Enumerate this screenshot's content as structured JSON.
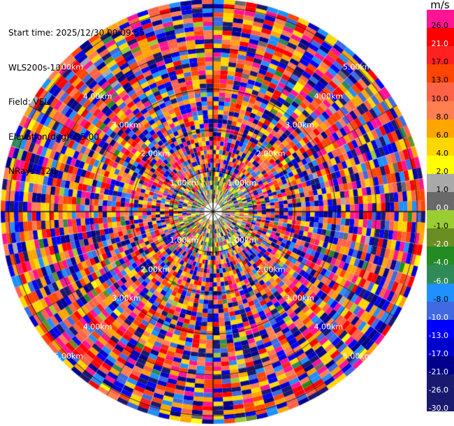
{
  "header": {
    "start_time": "Start time: 2025/12/30 00:09:55",
    "instrument": "WLS200s-181",
    "field": "Field: VEL",
    "elevation": "Elevation(deg): 35.00",
    "nrays": "NRays: 120"
  },
  "colorbar": {
    "unit": "m/s",
    "levels": [
      {
        "label": "26.0",
        "color": "#ff1493"
      },
      {
        "label": "21.0",
        "color": "#ff0000"
      },
      {
        "label": "17.0",
        "color": "#ff2020"
      },
      {
        "label": "13.0",
        "color": "#ff4500"
      },
      {
        "label": "10.0",
        "color": "#ff6347"
      },
      {
        "label": "8.0",
        "color": "#ff7f50"
      },
      {
        "label": "6.0",
        "color": "#ffa500"
      },
      {
        "label": "4.0",
        "color": "#ffd700"
      },
      {
        "label": "2.0",
        "color": "#ffff00"
      },
      {
        "label": "1.0",
        "color": "#a9a9a9"
      },
      {
        "label": "0.0",
        "color": "#696969"
      },
      {
        "label": "-1.0",
        "color": "#9acd32"
      },
      {
        "label": "-2.0",
        "color": "#6b8e23"
      },
      {
        "label": "-4.0",
        "color": "#228b22"
      },
      {
        "label": "-6.0",
        "color": "#2e8b57"
      },
      {
        "label": "-8.0",
        "color": "#1e90ff"
      },
      {
        "label": "-10.0",
        "color": "#4169e1"
      },
      {
        "label": "-13.0",
        "color": "#0000ff"
      },
      {
        "label": "-17.0",
        "color": "#0000cd"
      },
      {
        "label": "-21.0",
        "color": "#00008b"
      },
      {
        "label": "-26.0",
        "color": "#191970"
      },
      {
        "label": "-30.0",
        "color": "#191970"
      }
    ]
  },
  "chart_data": {
    "type": "heatmap",
    "projection": "polar",
    "field": "VEL",
    "nrays": 120,
    "elevation_deg": 35.0,
    "range_rings_km": [
      1.0,
      2.0,
      3.0,
      4.0,
      5.0
    ],
    "ring_labels": [
      "1.00km",
      "2.00km",
      "3.00km",
      "4.00km",
      "5.00km"
    ],
    "max_range_km": 5.2,
    "value_range": [
      -30.0,
      30.0
    ],
    "note_values": "velocity values per gate appear as a noisy mix across all bins; near-center gates cluster around 0 to -2 m/s"
  }
}
